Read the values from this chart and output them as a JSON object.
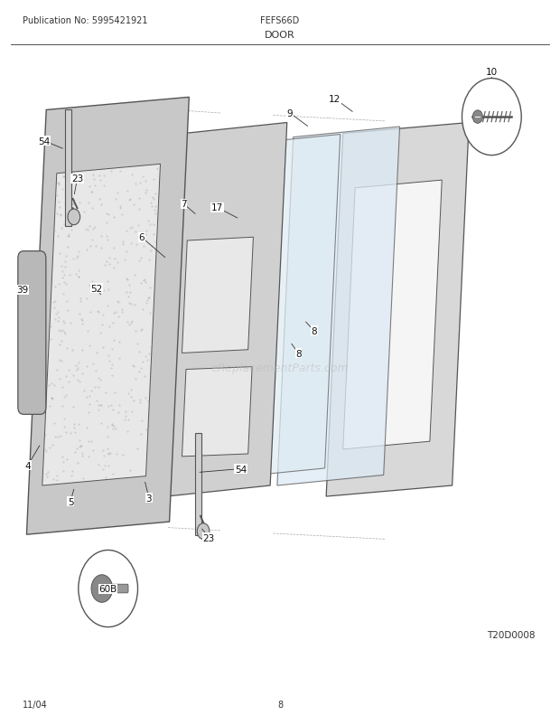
{
  "title": "DOOR",
  "pub_no": "Publication No: 5995421921",
  "model": "FEFS66D",
  "date": "11/04",
  "page": "8",
  "diagram_id": "T20D0008",
  "bg_color": "#ffffff",
  "line_color": "#333333",
  "watermark": "eReplacementParts.com"
}
